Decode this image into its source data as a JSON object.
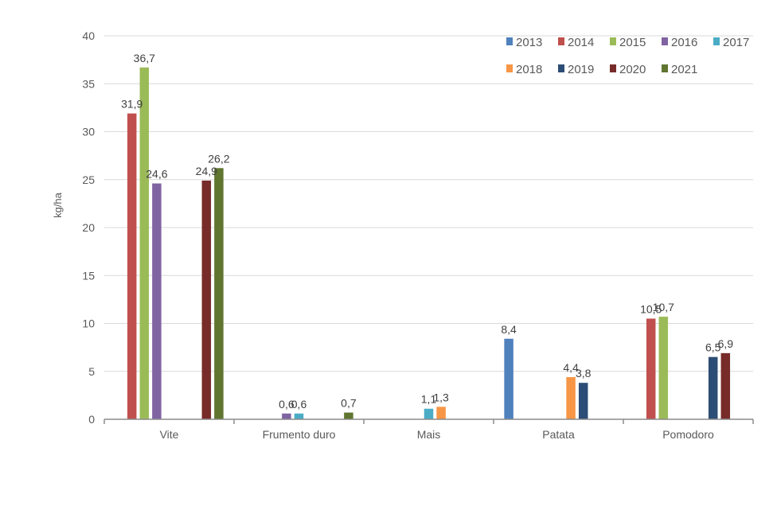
{
  "chart_data": {
    "type": "bar",
    "ylabel": "kg/ha",
    "xlabel": "",
    "ylim": [
      0,
      40
    ],
    "yticks": [
      0,
      5,
      10,
      15,
      20,
      25,
      30,
      35,
      40
    ],
    "grid": true,
    "legend_position": "top-right",
    "categories": [
      "Vite",
      "Frumento duro",
      "Mais",
      "Patata",
      "Pomodoro"
    ],
    "series": [
      {
        "name": "2013",
        "color": "#4F81BD",
        "values": [
          null,
          null,
          null,
          8.4,
          null
        ],
        "labels": [
          "",
          "",
          "",
          "8,4",
          ""
        ]
      },
      {
        "name": "2014",
        "color": "#C0504D",
        "values": [
          31.9,
          null,
          null,
          null,
          10.5
        ],
        "labels": [
          "31,9",
          "",
          "",
          "",
          "10,5"
        ]
      },
      {
        "name": "2015",
        "color": "#9BBB59",
        "values": [
          36.7,
          null,
          null,
          null,
          10.7
        ],
        "labels": [
          "36,7",
          "",
          "",
          "",
          "10,7"
        ]
      },
      {
        "name": "2016",
        "color": "#8064A2",
        "values": [
          24.6,
          0.6,
          null,
          null,
          null
        ],
        "labels": [
          "24,6",
          "0,6",
          "",
          "",
          ""
        ]
      },
      {
        "name": "2017",
        "color": "#4BACC6",
        "values": [
          null,
          0.6,
          1.1,
          null,
          null
        ],
        "labels": [
          "",
          "0,6",
          "1,1",
          "",
          ""
        ]
      },
      {
        "name": "2018",
        "color": "#F79646",
        "values": [
          null,
          null,
          1.3,
          4.4,
          null
        ],
        "labels": [
          "",
          "",
          "1,3",
          "4,4",
          ""
        ]
      },
      {
        "name": "2019",
        "color": "#2C4D75",
        "values": [
          null,
          null,
          null,
          3.8,
          6.5
        ],
        "labels": [
          "",
          "",
          "",
          "3,8",
          "6,5"
        ]
      },
      {
        "name": "2020",
        "color": "#772C2A",
        "values": [
          24.9,
          null,
          null,
          null,
          6.9
        ],
        "labels": [
          "24,9",
          "",
          "",
          "",
          "6,9"
        ]
      },
      {
        "name": "2021",
        "color": "#5F7530",
        "values": [
          26.2,
          0.7,
          null,
          null,
          null
        ],
        "labels": [
          "26,2",
          "0,7",
          "",
          "",
          ""
        ]
      }
    ]
  }
}
